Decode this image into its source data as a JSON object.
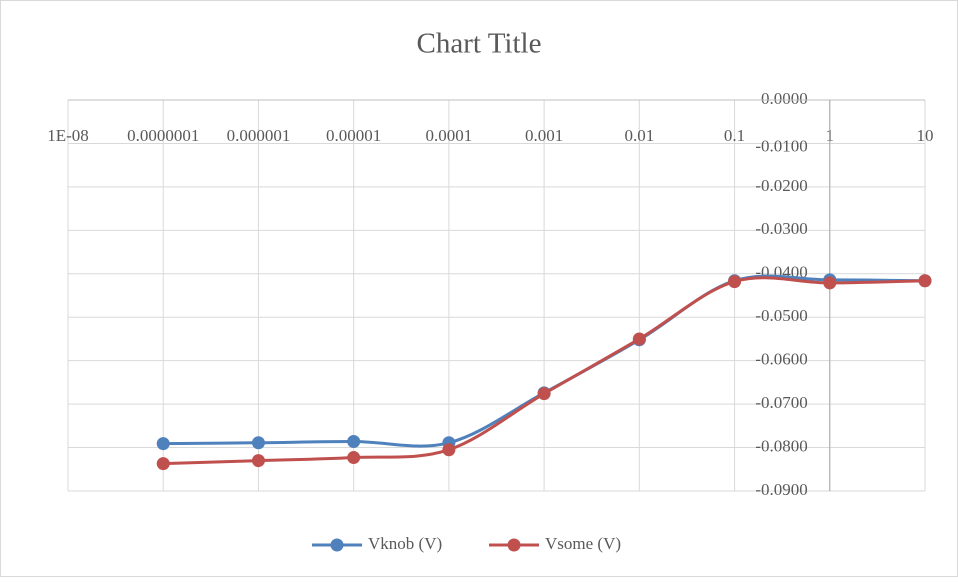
{
  "chart_data": {
    "type": "line",
    "title": "Chart Title",
    "x": [
      1e-07,
      1e-06,
      1e-05,
      0.0001,
      0.001,
      0.01,
      0.1,
      1,
      10
    ],
    "series": [
      {
        "name": "Vknob (V)",
        "color": "#4f81bd",
        "values": [
          -0.0791,
          -0.0789,
          -0.0786,
          -0.0789,
          -0.0674,
          -0.0552,
          -0.0416,
          -0.0414,
          -0.0416
        ]
      },
      {
        "name": "Vsome (V)",
        "color": "#c0504d",
        "values": [
          -0.0837,
          -0.083,
          -0.0823,
          -0.0805,
          -0.0676,
          -0.055,
          -0.0418,
          -0.0421,
          -0.0416
        ]
      }
    ],
    "xscale": "log",
    "xlim": [
      1e-08,
      10
    ],
    "xticks": [
      {
        "value": 1e-08,
        "label": "1E-08"
      },
      {
        "value": 1e-07,
        "label": "0.0000001"
      },
      1e-06,
      1e-05,
      0.0001,
      0.001,
      0.01,
      0.1,
      1,
      10
    ],
    "ylim": [
      -0.09,
      0
    ],
    "yticks": [
      {
        "value": 0,
        "label": "0.0000"
      },
      {
        "value": -0.01,
        "label": "-0.0100"
      },
      {
        "value": -0.02,
        "label": "-0.0200"
      },
      {
        "value": -0.03,
        "label": "-0.0300"
      },
      {
        "value": -0.04,
        "label": "-0.0400"
      },
      {
        "value": -0.05,
        "label": "-0.0500"
      },
      {
        "value": -0.06,
        "label": "-0.0600"
      },
      {
        "value": -0.07,
        "label": "-0.0700"
      },
      {
        "value": -0.08,
        "label": "-0.0800"
      },
      {
        "value": -0.09,
        "label": "-0.0900"
      }
    ],
    "yaxis_at_x": 1,
    "grid": true,
    "legend": "bottom"
  }
}
